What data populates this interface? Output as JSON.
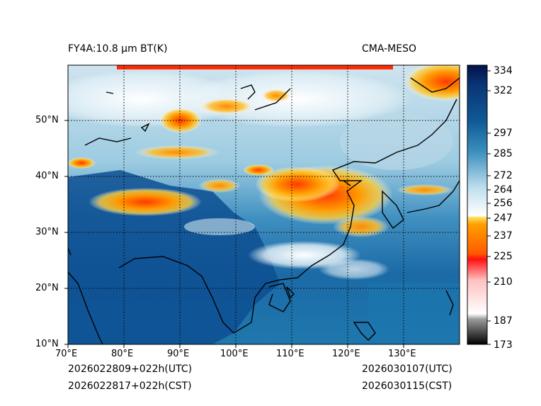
{
  "header": {
    "product": "FY4A:10.8 μm BT(K)",
    "source": "CMA-MESO"
  },
  "footer": {
    "init_utc": "2026022809+022h(UTC)",
    "init_cst": "2026022817+022h(CST)",
    "valid_utc": "2026030107(UTC)",
    "valid_cst": "2026030115(CST)"
  },
  "map": {
    "lon_range": [
      70,
      140
    ],
    "lat_range": [
      10,
      60
    ],
    "lon_ticks": [
      "70°E",
      "80°E",
      "90°E",
      "100°E",
      "110°E",
      "120°E",
      "130°E"
    ],
    "lat_ticks": [
      "10°N",
      "20°N",
      "30°N",
      "40°N",
      "50°N"
    ]
  },
  "colorbar": {
    "range": [
      173,
      336
    ],
    "ticks": [
      "173",
      "187",
      "210",
      "225",
      "237",
      "247",
      "256",
      "264",
      "272",
      "285",
      "297",
      "322",
      "334"
    ],
    "colors": {
      "cold_black": "#000000",
      "gray": "#888888",
      "white": "#ffffff",
      "pink": "#ffb0b0",
      "red": "#ff0000",
      "orange": "#ff7a00",
      "yellow": "#ffd400",
      "light_blue": "#dff0f7",
      "mid_blue": "#5aa5c8",
      "deep_blue": "#1560a0",
      "navy": "#00124a"
    }
  }
}
